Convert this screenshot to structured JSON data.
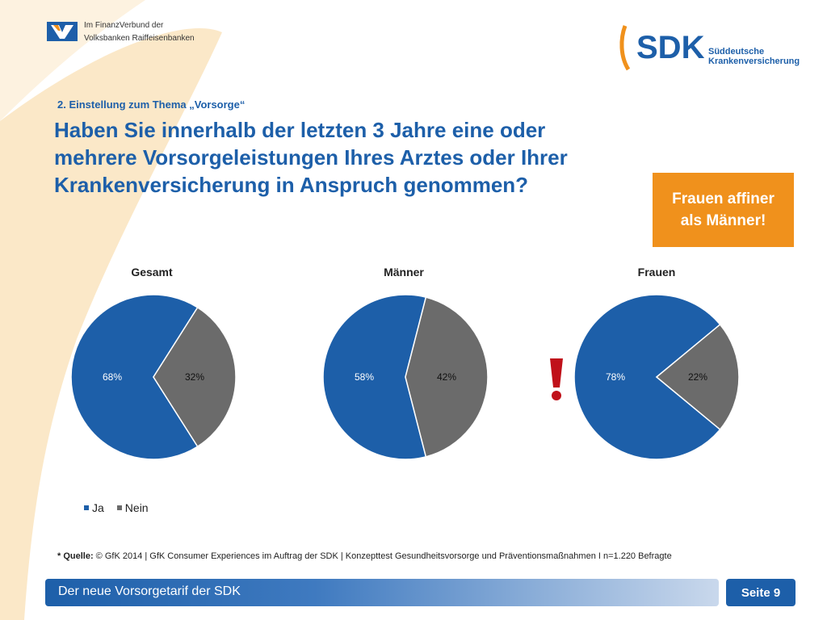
{
  "header": {
    "vr_text_line1": "Im FinanzVerbund der",
    "vr_text_line2": "Volksbanken Raiffeisenbanken",
    "sdk_logo_text": "SDK",
    "sdk_sub_line1": "Süddeutsche",
    "sdk_sub_line2": "Krankenversicherung"
  },
  "section_label": "2. Einstellung zum Thema „Vorsorge“",
  "headline_lines": [
    "Haben Sie  innerhalb der letzten 3 Jahre eine oder",
    "mehrere Vorsorgeleistungen Ihres Arztes oder Ihrer",
    "Krankenversicherung in Anspruch genommen?"
  ],
  "callout": {
    "line1": "Frauen affiner",
    "line2": "als Männer!"
  },
  "colors": {
    "ja": "#1d5fa9",
    "nein": "#6b6b6b",
    "accent": "#f0911c"
  },
  "chart_data": [
    {
      "type": "pie",
      "title": "Gesamt",
      "categories": [
        "Ja",
        "Nein"
      ],
      "values": [
        68,
        32
      ],
      "labels": [
        "68%",
        "32%"
      ]
    },
    {
      "type": "pie",
      "title": "Männer",
      "categories": [
        "Ja",
        "Nein"
      ],
      "values": [
        58,
        42
      ],
      "labels": [
        "58%",
        "42%"
      ]
    },
    {
      "type": "pie",
      "title": "Frauen",
      "categories": [
        "Ja",
        "Nein"
      ],
      "values": [
        78,
        22
      ],
      "labels": [
        "78%",
        "22%"
      ]
    }
  ],
  "legend": [
    {
      "label": "Ja"
    },
    {
      "label": "Nein"
    }
  ],
  "source": {
    "prefix": "* Quelle:",
    "text": " © GfK 2014 | GfK Consumer Experiences im Auftrag der SDK | Konzepttest Gesundheitsvorsorge und Präventionsmaßnahmen I n=1.220 Befragte"
  },
  "footer": {
    "title": "Der neue Vorsorgetarif der SDK",
    "page": "Seite 9"
  }
}
